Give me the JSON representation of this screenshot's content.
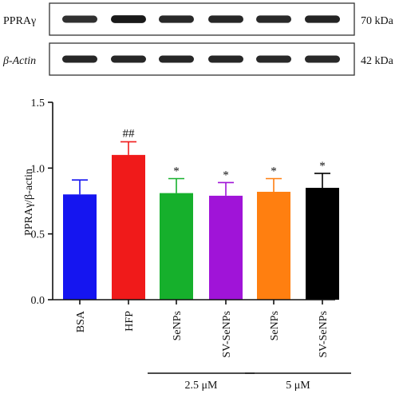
{
  "blots": [
    {
      "label": "PPRAγ",
      "size": "70 kDa",
      "band_intensity": [
        0.75,
        0.92,
        0.8,
        0.82,
        0.8,
        0.84
      ]
    },
    {
      "label": "β-Actin",
      "size": "42 kDa",
      "band_intensity": [
        0.82,
        0.82,
        0.82,
        0.82,
        0.8,
        0.8
      ]
    }
  ],
  "chart_data": {
    "type": "bar",
    "title": "",
    "xlabel": "",
    "ylabel": "PPRAγ/β-actin",
    "ylim": [
      0,
      1.5
    ],
    "yticks": [
      "0.0",
      "0.5",
      "1.0",
      "1.5"
    ],
    "categories": [
      "BSA",
      "HFP",
      "SeNPs",
      "SV-SeNPs",
      "SeNPs",
      "SV-SeNPs"
    ],
    "values": [
      0.8,
      1.1,
      0.81,
      0.79,
      0.82,
      0.85
    ],
    "errors": [
      0.11,
      0.1,
      0.11,
      0.1,
      0.1,
      0.11
    ],
    "colors": [
      "#1515f0",
      "#f01a1a",
      "#16b02c",
      "#a014d8",
      "#ff7f10",
      "#000000"
    ],
    "annotations": [
      "",
      "##",
      "*",
      "*",
      "*",
      "*"
    ],
    "groups": [
      {
        "label": "2.5 μM",
        "categories": [
          2,
          3
        ]
      },
      {
        "label": "5 μM",
        "categories": [
          4,
          5
        ]
      }
    ]
  }
}
